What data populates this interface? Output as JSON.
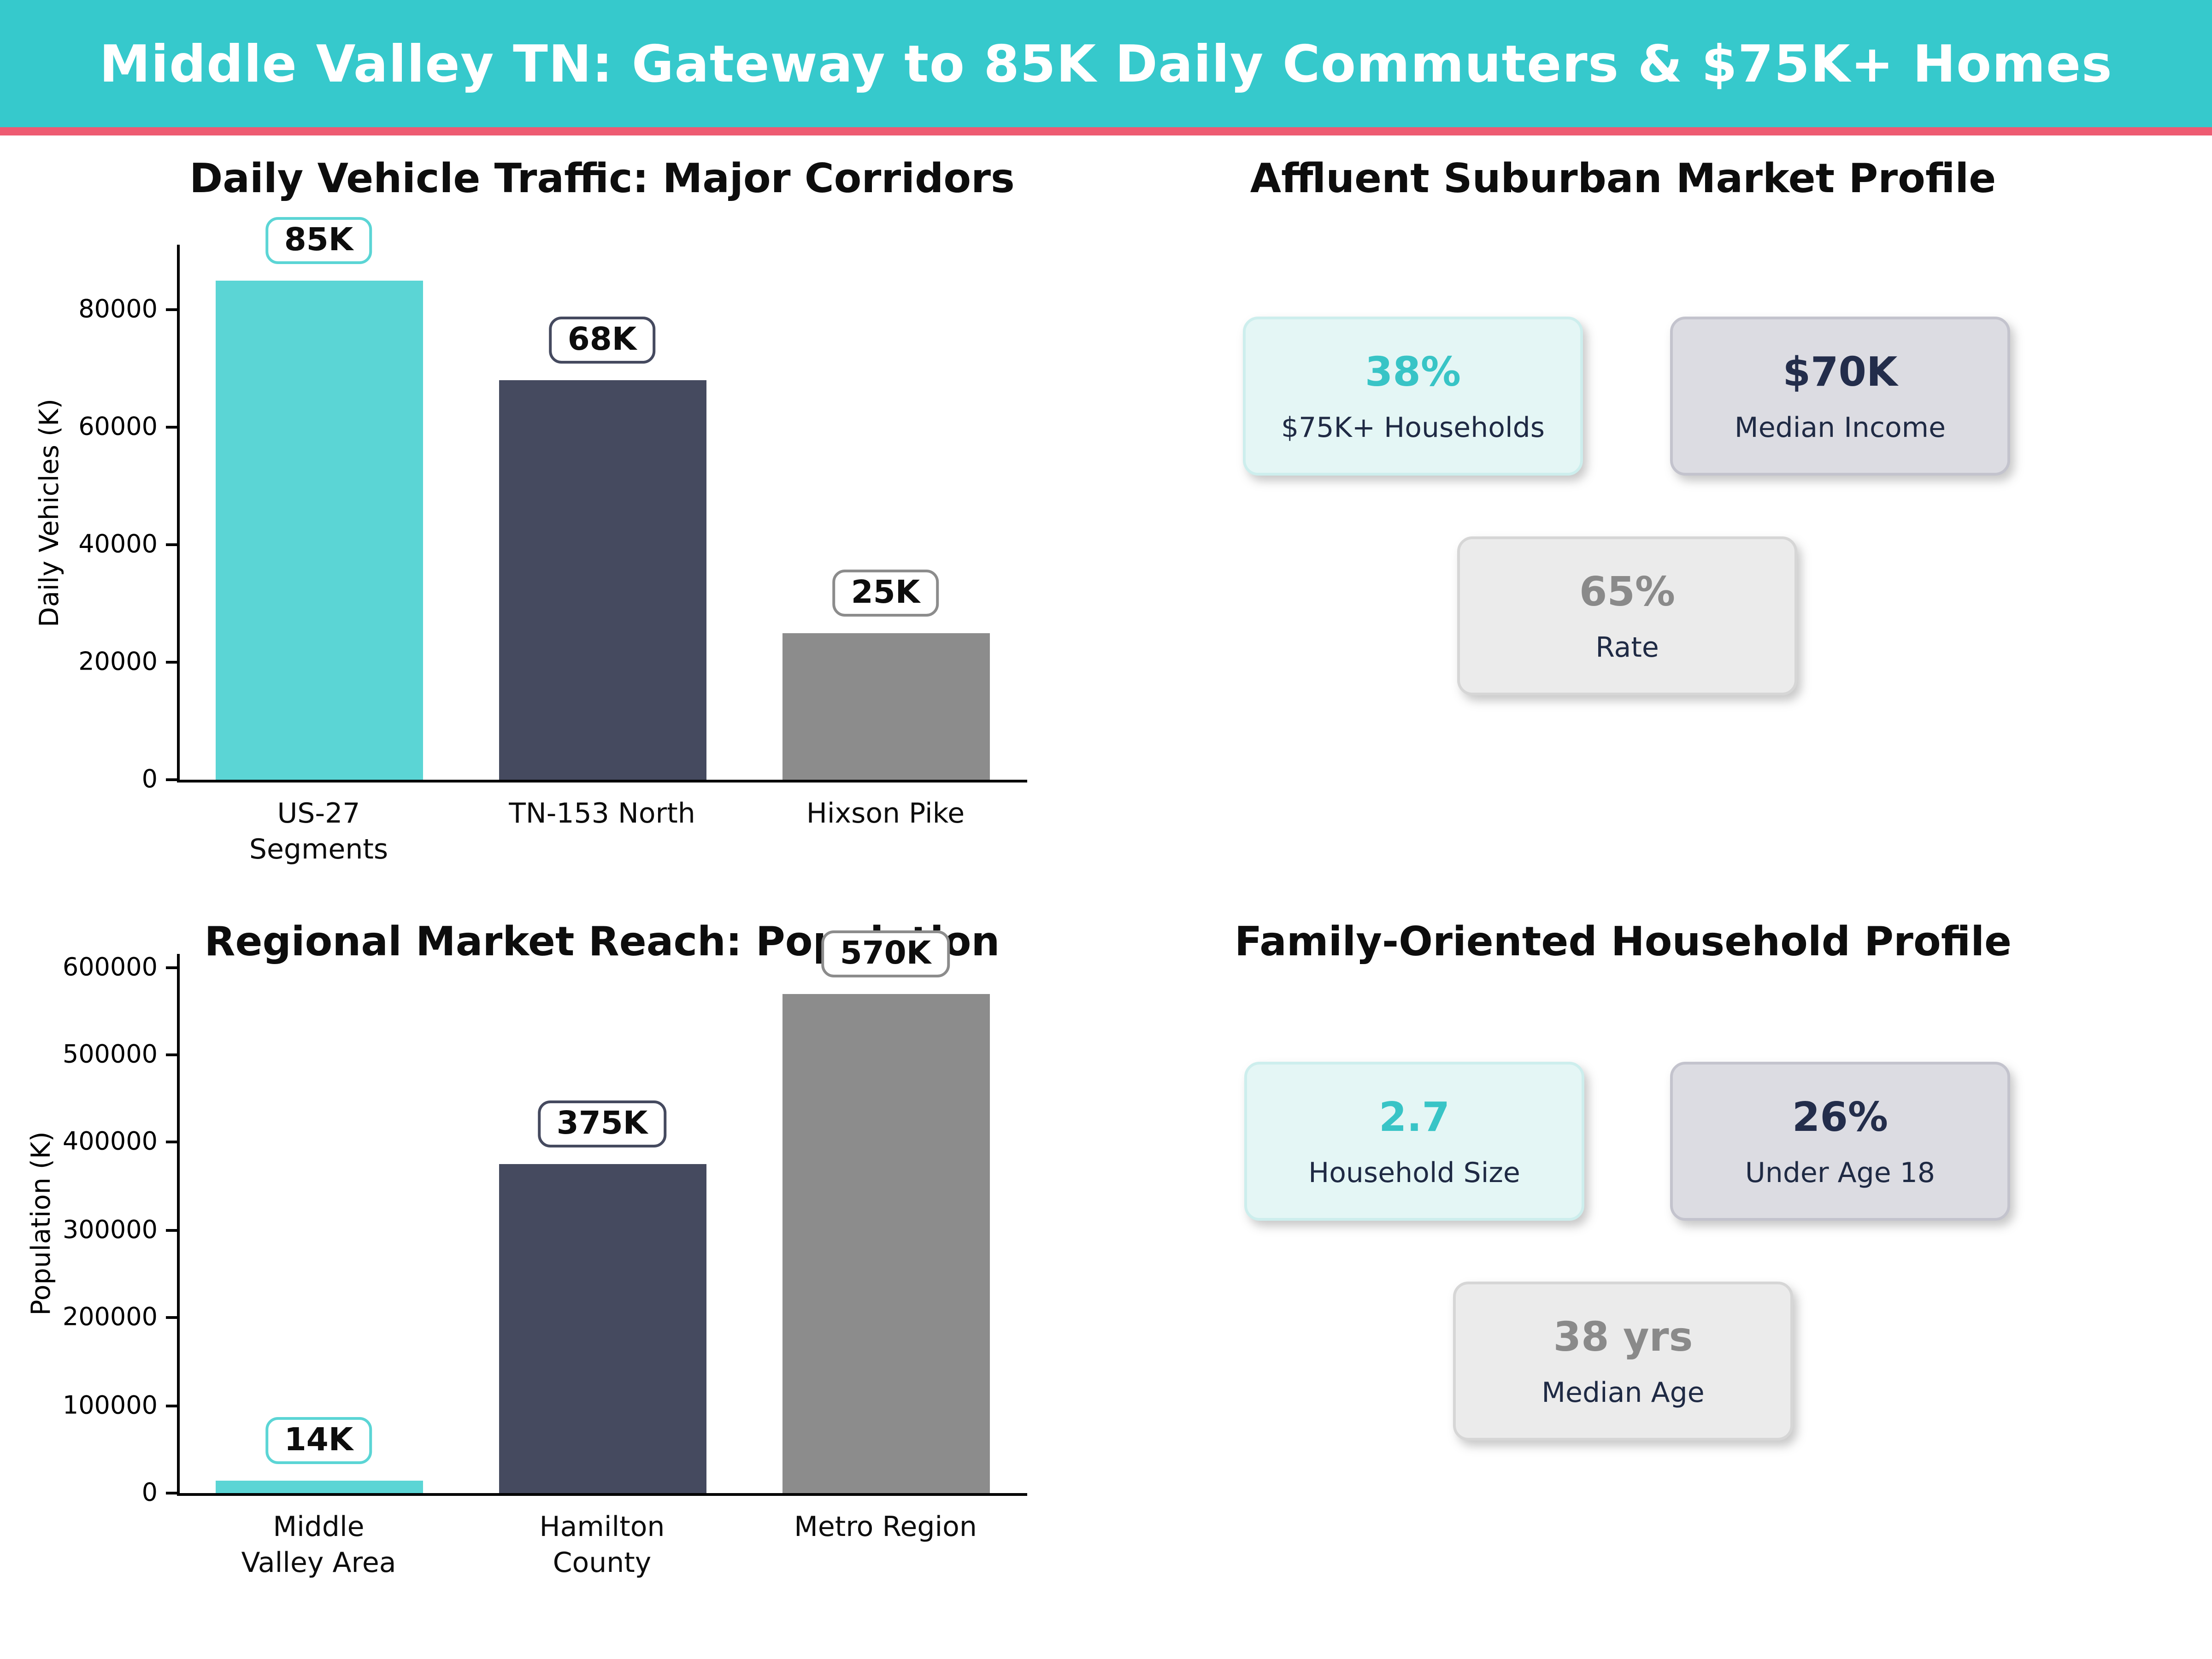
{
  "header": {
    "title": "Middle Valley TN: Gateway to 85K Daily Commuters & $75K+ Homes"
  },
  "theme": {
    "header_bg": "#36c9cc",
    "stripe": "#ee5b72",
    "bar_teal": "#5bd5d5",
    "bar_navy": "#454a5f",
    "bar_gray": "#8c8c8c",
    "card_teal_bg": "#e4f6f5",
    "card_teal_border": "#cdeeed",
    "card_lav_bg": "#dcdce2",
    "card_lav_border": "#c3c3cd",
    "card_gray_bg": "#ebebeb",
    "card_gray_border": "#d6d6d6",
    "value_teal": "#38c4c6",
    "value_navy": "#232d4b",
    "value_gray": "#8a8a8a",
    "label_navy": "#1f2a44"
  },
  "chart_data": [
    {
      "type": "bar",
      "title": "Daily Vehicle Traffic: Major Corridors",
      "xlabel": "",
      "ylabel": "Daily Vehicles (K)",
      "categories": [
        "US-27\nSegments",
        "TN-153 North",
        "Hixson Pike"
      ],
      "values": [
        85000,
        68000,
        25000
      ],
      "bar_labels": [
        "85K",
        "68K",
        "25K"
      ],
      "bar_colors": [
        "#5bd5d5",
        "#454a5f",
        "#8c8c8c"
      ],
      "yticks": [
        0,
        20000,
        40000,
        60000,
        80000
      ],
      "ylim": [
        0,
        91100
      ],
      "grid": false,
      "legend_position": "none"
    },
    {
      "type": "bar",
      "title": "Regional Market Reach: Population",
      "xlabel": "",
      "ylabel": "Population (K)",
      "categories": [
        "Middle\nValley Area",
        "Hamilton\nCounty",
        "Metro Region"
      ],
      "values": [
        14000,
        375000,
        570000
      ],
      "bar_labels": [
        "14K",
        "375K",
        "570K"
      ],
      "bar_colors": [
        "#5bd5d5",
        "#454a5f",
        "#8c8c8c"
      ],
      "yticks": [
        0,
        100000,
        200000,
        300000,
        400000,
        500000,
        600000
      ],
      "ylim": [
        0,
        615000
      ],
      "grid": false,
      "legend_position": "none"
    }
  ],
  "panels": [
    {
      "title": "Affluent Suburban Market Profile",
      "cards": [
        {
          "value": "38%",
          "label": "$75K+ Households"
        },
        {
          "value": "$70K",
          "label": "Median Income"
        },
        {
          "value": "65%",
          "label": "Rate"
        }
      ]
    },
    {
      "title": "Family-Oriented Household Profile",
      "cards": [
        {
          "value": "2.7",
          "label": "Household Size"
        },
        {
          "value": "26%",
          "label": "Under Age 18"
        },
        {
          "value": "38 yrs",
          "label": "Median Age"
        }
      ]
    }
  ]
}
